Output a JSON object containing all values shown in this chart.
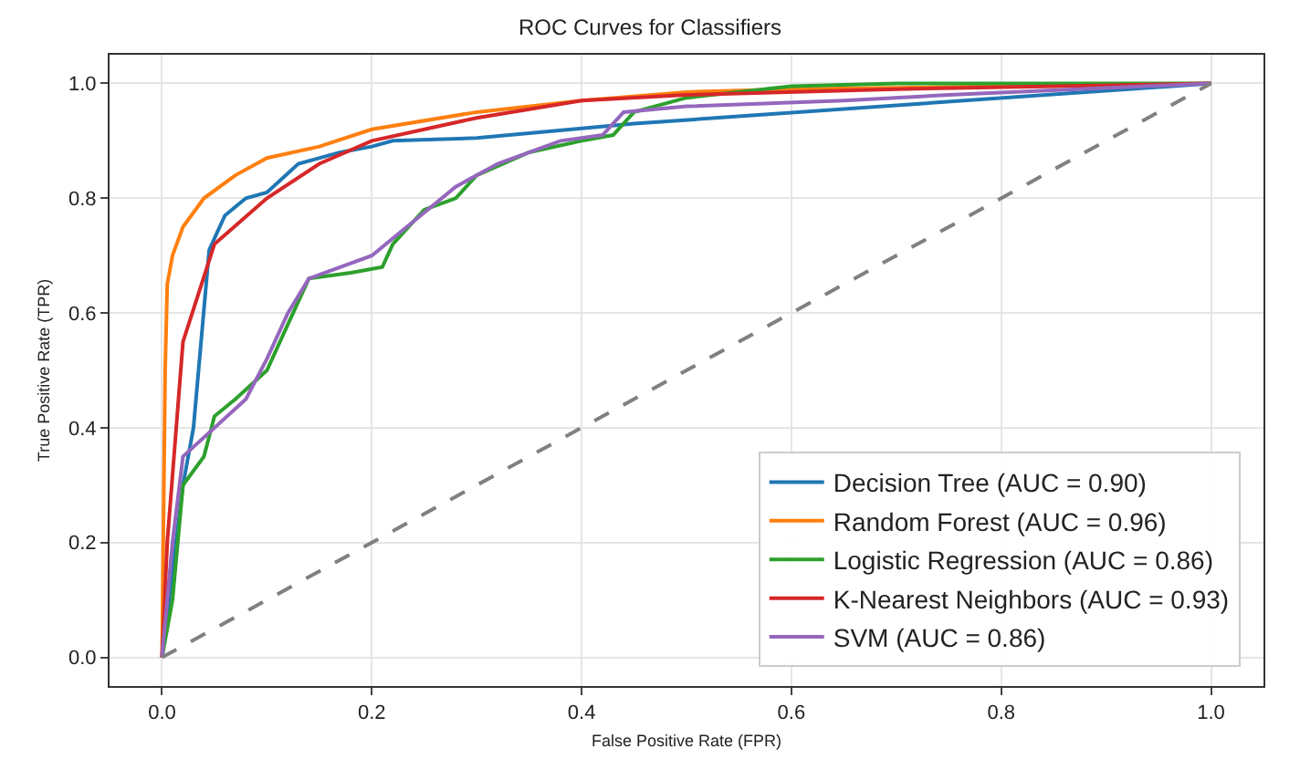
{
  "chart_data": {
    "type": "line",
    "title": "ROC Curves for Classifiers",
    "xlabel": "False Positive Rate (FPR)",
    "ylabel": "True Positive Rate (TPR)",
    "xlim": [
      -0.05,
      1.05
    ],
    "ylim": [
      -0.05,
      1.05
    ],
    "xticks": [
      {
        "value": 0,
        "label": "0.0"
      },
      {
        "value": 0.2,
        "label": "0.2"
      },
      {
        "value": 0.4,
        "label": "0.4"
      },
      {
        "value": 0.6,
        "label": "0.6"
      },
      {
        "value": 0.8,
        "label": "0.8"
      },
      {
        "value": 1,
        "label": "1.0"
      }
    ],
    "yticks": [
      {
        "value": 0,
        "label": "0.0"
      },
      {
        "value": 0.2,
        "label": "0.2"
      },
      {
        "value": 0.4,
        "label": "0.4"
      },
      {
        "value": 0.6,
        "label": "0.6"
      },
      {
        "value": 0.8,
        "label": "0.8"
      },
      {
        "value": 1,
        "label": "1.0"
      }
    ],
    "grid": true,
    "legend": "bottom right",
    "marker": "none",
    "series": [
      {
        "name": "Decision Tree (AUC = 0.90)",
        "color": "#1f77b4",
        "x": [
          0,
          0.02,
          0.03,
          0.045,
          0.06,
          0.08,
          0.1,
          0.13,
          0.17,
          0.2,
          0.22,
          0.3,
          0.45,
          1
        ],
        "values": [
          0,
          0.3,
          0.4,
          0.71,
          0.77,
          0.8,
          0.81,
          0.86,
          0.88,
          0.89,
          0.9,
          0.905,
          0.93,
          1
        ]
      },
      {
        "name": "Random Forest (AUC = 0.96)",
        "color": "#ff7f0e",
        "x": [
          0,
          0.003,
          0.005,
          0.01,
          0.02,
          0.04,
          0.07,
          0.1,
          0.15,
          0.2,
          0.3,
          0.4,
          0.5,
          0.6,
          1
        ],
        "values": [
          0,
          0.5,
          0.65,
          0.7,
          0.75,
          0.8,
          0.84,
          0.87,
          0.89,
          0.92,
          0.95,
          0.97,
          0.985,
          0.99,
          1
        ]
      },
      {
        "name": "Logistic Regression (AUC = 0.86)",
        "color": "#2ca02c",
        "x": [
          0,
          0.01,
          0.02,
          0.04,
          0.05,
          0.07,
          0.1,
          0.12,
          0.14,
          0.18,
          0.21,
          0.22,
          0.25,
          0.28,
          0.3,
          0.35,
          0.4,
          0.43,
          0.45,
          0.5,
          0.6,
          0.7,
          1
        ],
        "values": [
          0,
          0.1,
          0.3,
          0.35,
          0.42,
          0.45,
          0.5,
          0.58,
          0.66,
          0.67,
          0.68,
          0.72,
          0.78,
          0.8,
          0.84,
          0.88,
          0.9,
          0.91,
          0.95,
          0.975,
          0.995,
          1,
          1
        ]
      },
      {
        "name": "K-Nearest Neighbors (AUC = 0.93)",
        "color": "#d62728",
        "x": [
          0,
          0.005,
          0.02,
          0.05,
          0.1,
          0.15,
          0.2,
          0.3,
          0.4,
          0.5,
          0.7,
          1
        ],
        "values": [
          0,
          0.2,
          0.55,
          0.72,
          0.8,
          0.86,
          0.9,
          0.94,
          0.97,
          0.98,
          0.99,
          1
        ]
      },
      {
        "name": "SVM (AUC = 0.86)",
        "color": "#9467bd",
        "x": [
          0,
          0.01,
          0.02,
          0.05,
          0.08,
          0.1,
          0.12,
          0.14,
          0.2,
          0.24,
          0.28,
          0.32,
          0.38,
          0.42,
          0.44,
          0.5,
          0.65,
          0.75,
          1
        ],
        "values": [
          0,
          0.2,
          0.35,
          0.4,
          0.45,
          0.52,
          0.6,
          0.66,
          0.7,
          0.76,
          0.82,
          0.86,
          0.9,
          0.91,
          0.95,
          0.96,
          0.97,
          0.98,
          1
        ]
      },
      {
        "color": "#808080",
        "line_style": "dashed",
        "x": [
          0,
          1
        ],
        "values": [
          0,
          1
        ]
      }
    ]
  }
}
